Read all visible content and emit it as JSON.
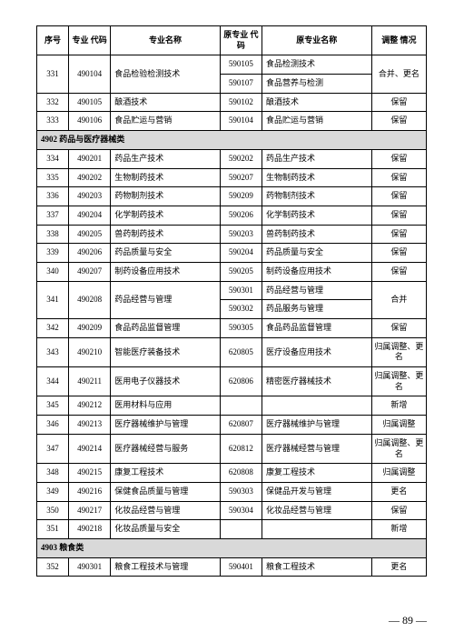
{
  "headers": {
    "seq": "序号",
    "code": "专业\n代码",
    "name": "专业名称",
    "old_code": "原专业\n代码",
    "old_name": "原专业名称",
    "adjust": "调整\n情况"
  },
  "page_number": "— 89 —",
  "colors": {
    "section_bg": "#d9d9d9",
    "border": "#000000",
    "text": "#000000",
    "bg": "#ffffff"
  },
  "fontsize": 9,
  "rows": [
    {
      "type": "data",
      "seq": "331",
      "code": "490104",
      "name": "食品检验检测技术",
      "old_code": "590105",
      "old_name": "食品检测技术",
      "adjust": "合并、更名",
      "seq_rs": 2,
      "code_rs": 2,
      "name_rs": 2,
      "adjust_rs": 2
    },
    {
      "type": "sub",
      "old_code": "590107",
      "old_name": "食品营养与检测"
    },
    {
      "type": "data",
      "seq": "332",
      "code": "490105",
      "name": "酿酒技术",
      "old_code": "590102",
      "old_name": "酿酒技术",
      "adjust": "保留"
    },
    {
      "type": "data",
      "seq": "333",
      "code": "490106",
      "name": "食品贮运与营销",
      "old_code": "590104",
      "old_name": "食品贮运与营销",
      "adjust": "保留"
    },
    {
      "type": "section",
      "label": "4902 药品与医疗器械类"
    },
    {
      "type": "data",
      "seq": "334",
      "code": "490201",
      "name": "药品生产技术",
      "old_code": "590202",
      "old_name": "药品生产技术",
      "adjust": "保留"
    },
    {
      "type": "data",
      "seq": "335",
      "code": "490202",
      "name": "生物制药技术",
      "old_code": "590207",
      "old_name": "生物制药技术",
      "adjust": "保留"
    },
    {
      "type": "data",
      "seq": "336",
      "code": "490203",
      "name": "药物制剂技术",
      "old_code": "590209",
      "old_name": "药物制剂技术",
      "adjust": "保留"
    },
    {
      "type": "data",
      "seq": "337",
      "code": "490204",
      "name": "化学制药技术",
      "old_code": "590206",
      "old_name": "化学制药技术",
      "adjust": "保留"
    },
    {
      "type": "data",
      "seq": "338",
      "code": "490205",
      "name": "兽药制药技术",
      "old_code": "590203",
      "old_name": "兽药制药技术",
      "adjust": "保留"
    },
    {
      "type": "data",
      "seq": "339",
      "code": "490206",
      "name": "药品质量与安全",
      "old_code": "590204",
      "old_name": "药品质量与安全",
      "adjust": "保留"
    },
    {
      "type": "data",
      "seq": "340",
      "code": "490207",
      "name": "制药设备应用技术",
      "old_code": "590205",
      "old_name": "制药设备应用技术",
      "adjust": "保留"
    },
    {
      "type": "data",
      "seq": "341",
      "code": "490208",
      "name": "药品经营与管理",
      "old_code": "590301",
      "old_name": "药品经营与管理",
      "adjust": "合并",
      "seq_rs": 2,
      "code_rs": 2,
      "name_rs": 2,
      "adjust_rs": 2
    },
    {
      "type": "sub",
      "old_code": "590302",
      "old_name": "药品服务与管理"
    },
    {
      "type": "data",
      "seq": "342",
      "code": "490209",
      "name": "食品药品监督管理",
      "old_code": "590305",
      "old_name": "食品药品监督管理",
      "adjust": "保留"
    },
    {
      "type": "data",
      "seq": "343",
      "code": "490210",
      "name": "智能医疗装备技术",
      "old_code": "620805",
      "old_name": "医疗设备应用技术",
      "adjust": "归属调整、更名"
    },
    {
      "type": "data",
      "seq": "344",
      "code": "490211",
      "name": "医用电子仪器技术",
      "old_code": "620806",
      "old_name": "精密医疗器械技术",
      "adjust": "归属调整、更名"
    },
    {
      "type": "data",
      "seq": "345",
      "code": "490212",
      "name": "医用材料与应用",
      "old_code": "",
      "old_name": "",
      "adjust": "新增"
    },
    {
      "type": "data",
      "seq": "346",
      "code": "490213",
      "name": "医疗器械维护与管理",
      "old_code": "620807",
      "old_name": "医疗器械维护与管理",
      "adjust": "归属调整"
    },
    {
      "type": "data",
      "seq": "347",
      "code": "490214",
      "name": "医疗器械经营与服务",
      "old_code": "620812",
      "old_name": "医疗器械经营与管理",
      "adjust": "归属调整、更名"
    },
    {
      "type": "data",
      "seq": "348",
      "code": "490215",
      "name": "康复工程技术",
      "old_code": "620808",
      "old_name": "康复工程技术",
      "adjust": "归属调整"
    },
    {
      "type": "data",
      "seq": "349",
      "code": "490216",
      "name": "保健食品质量与管理",
      "old_code": "590303",
      "old_name": "保健品开发与管理",
      "adjust": "更名"
    },
    {
      "type": "data",
      "seq": "350",
      "code": "490217",
      "name": "化妆品经营与管理",
      "old_code": "590304",
      "old_name": "化妆品经营与管理",
      "adjust": "保留"
    },
    {
      "type": "data",
      "seq": "351",
      "code": "490218",
      "name": "化妆品质量与安全",
      "old_code": "",
      "old_name": "",
      "adjust": "新增"
    },
    {
      "type": "section",
      "label": "4903 粮食类"
    },
    {
      "type": "data",
      "seq": "352",
      "code": "490301",
      "name": "粮食工程技术与管理",
      "old_code": "590401",
      "old_name": "粮食工程技术",
      "adjust": "更名"
    }
  ]
}
